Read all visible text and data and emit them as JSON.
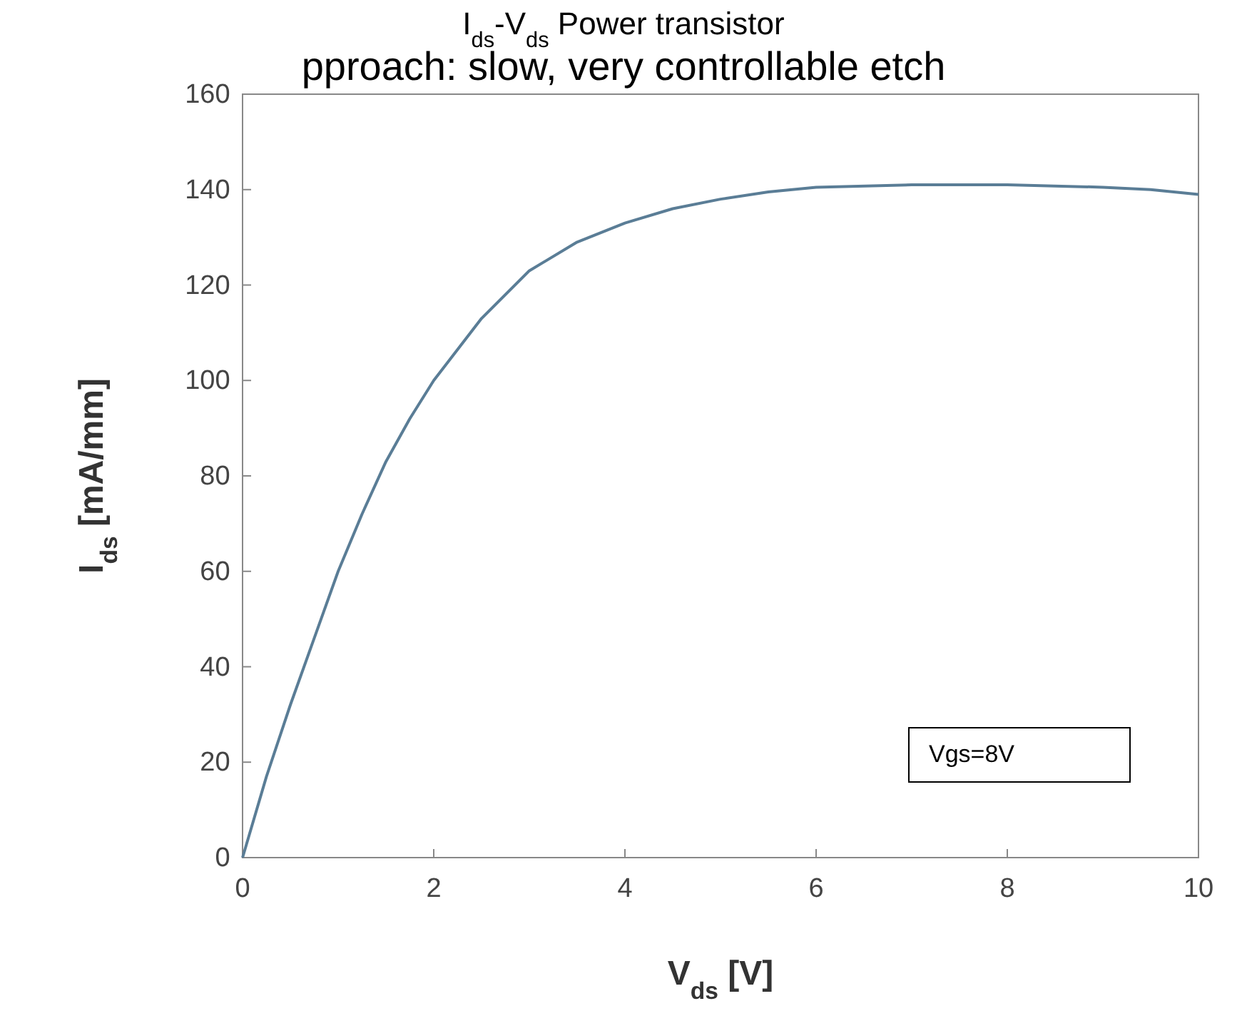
{
  "chart_data": {
    "type": "line",
    "title": "I$_{ds}$-V$_{ds}$ Power transistor",
    "xlabel": "V$_{ds}$ [V]",
    "ylabel": "I$_{ds}$ [mA/mm]",
    "annotations": [
      "pproach: slow, very controllable etch",
      "Vgs=8V"
    ],
    "x": [
      0,
      0.25,
      0.5,
      0.75,
      1,
      1.25,
      1.5,
      1.75,
      2,
      2.5,
      3,
      3.5,
      4,
      4.5,
      5,
      5.5,
      6,
      7,
      8,
      9,
      9.5,
      10
    ],
    "series": [
      {
        "color": "#5a7d96",
        "values": [
          0,
          17,
          32,
          46,
          60,
          72,
          83,
          92,
          100,
          113,
          123,
          129,
          133,
          136,
          138,
          139.5,
          140.5,
          141,
          141,
          140.5,
          140,
          139
        ]
      }
    ],
    "xlim": [
      0,
      10
    ],
    "xticks": [
      0,
      2,
      4,
      6,
      8,
      10
    ],
    "ylim": [
      0,
      160
    ],
    "yticks": [
      0,
      20,
      40,
      60,
      80,
      100,
      120,
      140,
      160
    ],
    "grid": false,
    "line_style": "solid",
    "marker": "none"
  }
}
